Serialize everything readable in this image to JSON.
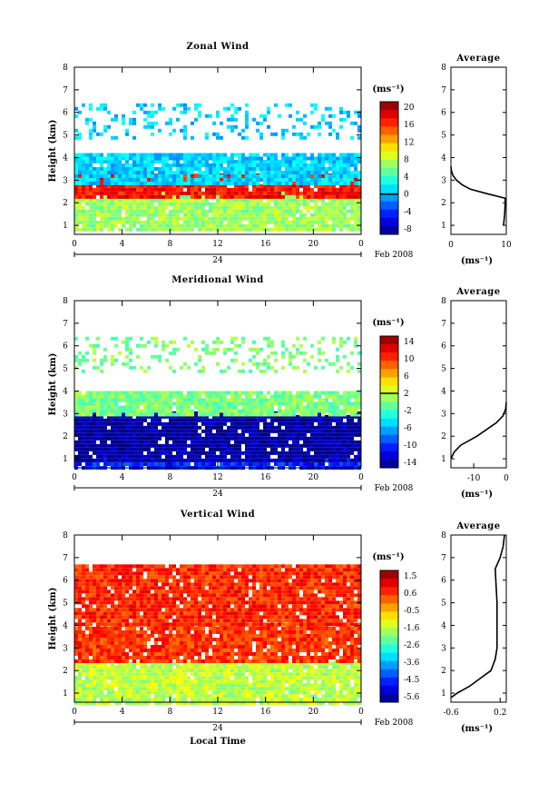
{
  "figure": {
    "date_label": "Feb 2008",
    "day_label": "24",
    "time_axis_label": "Local Time",
    "height_axis_label": "Height (km)",
    "unit_label": "(ms⁻¹)",
    "avg_unit_label": "(ms⁻¹)",
    "avg_title": "Average",
    "time_ticks": [
      "0",
      "4",
      "8",
      "12",
      "16",
      "20",
      "0"
    ],
    "height_ticks": [
      "1",
      "2",
      "3",
      "4",
      "5",
      "6",
      "7",
      "8"
    ]
  },
  "panels": [
    {
      "title": "Zonal Wind",
      "colorbar_ticks": [
        "20",
        "16",
        "12",
        "8",
        "4",
        "0",
        "-4",
        "-8"
      ],
      "colorbar_zero": "0",
      "avg_ticks": [
        "0",
        "10"
      ]
    },
    {
      "title": "Meridional Wind",
      "colorbar_ticks": [
        "14",
        "10",
        "6",
        "2",
        "-2",
        "-6",
        "-10",
        "-14"
      ],
      "colorbar_zero": "2",
      "avg_ticks": [
        "-10",
        "0"
      ]
    },
    {
      "title": "Vertical Wind",
      "colorbar_ticks": [
        "1.5",
        "0.6",
        "-0.5",
        "-1.6",
        "-2.6",
        "-3.6",
        "-4.5",
        "-5.6"
      ],
      "avg_ticks": [
        "-0.6",
        "0.2"
      ]
    }
  ],
  "chart_data": [
    {
      "type": "heatmap",
      "title": "Zonal Wind",
      "xlabel": "",
      "ylabel": "Height (km)",
      "x_range_hours": [
        0,
        24
      ],
      "y_range_km": [
        0.6,
        8.0
      ],
      "colorbar_range": [
        -8,
        22
      ],
      "colorscale": "jet",
      "layers": [
        {
          "y_km": [
            0.8,
            2.5
          ],
          "value": 8
        },
        {
          "y_km": [
            2.2,
            3.3
          ],
          "value": 18
        },
        {
          "y_km": [
            2.8,
            3.9
          ],
          "value": 2
        },
        {
          "y_km": [
            3.9,
            4.2
          ],
          "value": 2
        },
        {
          "y_km": [
            4.9,
            6.4
          ],
          "value": 2
        }
      ],
      "average_profile": {
        "height_km": [
          1.0,
          1.5,
          2.0,
          2.2,
          2.4,
          2.6,
          2.8,
          3.0,
          3.2,
          3.4,
          3.6
        ],
        "value": [
          9.5,
          9.7,
          9.8,
          9.8,
          6.5,
          3.5,
          2.0,
          1.0,
          0.4,
          0.1,
          0.0
        ],
        "xlim": [
          0,
          10
        ]
      }
    },
    {
      "type": "heatmap",
      "title": "Meridional Wind",
      "xlabel": "",
      "ylabel": "Height (km)",
      "x_range_hours": [
        0,
        24
      ],
      "y_range_km": [
        0.6,
        8.0
      ],
      "colorbar_range": [
        -16,
        16
      ],
      "colorscale": "jet",
      "layers": [
        {
          "y_km": [
            0.6,
            1.0
          ],
          "value": -11
        },
        {
          "y_km": [
            1.0,
            3.1
          ],
          "value": -15
        },
        {
          "y_km": [
            2.9,
            4.0
          ],
          "value": 0
        },
        {
          "y_km": [
            4.9,
            6.4
          ],
          "value": 0
        }
      ],
      "average_profile": {
        "height_km": [
          1.0,
          1.3,
          1.6,
          2.0,
          2.3,
          2.6,
          2.9,
          3.2,
          3.5
        ],
        "value": [
          -17.0,
          -16.0,
          -14.0,
          -9.0,
          -6.0,
          -3.0,
          -1.0,
          -0.2,
          0.0
        ],
        "xlim": [
          -17,
          0
        ]
      }
    },
    {
      "type": "heatmap",
      "title": "Vertical Wind",
      "xlabel": "Local Time",
      "ylabel": "Height (km)",
      "x_range_hours": [
        0,
        24
      ],
      "y_range_km": [
        0.6,
        8.0
      ],
      "colorbar_range": [
        -6,
        2
      ],
      "colorscale": "jet",
      "layers": [
        {
          "y_km": [
            0.6,
            2.4
          ],
          "value": -1.5
        },
        {
          "y_km": [
            2.4,
            4.1
          ],
          "value": 0.6
        },
        {
          "y_km": [
            4.1,
            6.7
          ],
          "value": 0.7
        }
      ],
      "average_profile": {
        "height_km": [
          0.8,
          1.0,
          1.3,
          1.6,
          2.0,
          2.5,
          3.0,
          4.0,
          5.0,
          6.5,
          7.0,
          7.5,
          8.0
        ],
        "value": [
          -0.6,
          -0.5,
          -0.3,
          -0.15,
          0.05,
          0.12,
          0.15,
          0.15,
          0.15,
          0.12,
          0.2,
          0.25,
          0.27
        ],
        "xlim": [
          -0.6,
          0.3
        ]
      }
    }
  ]
}
